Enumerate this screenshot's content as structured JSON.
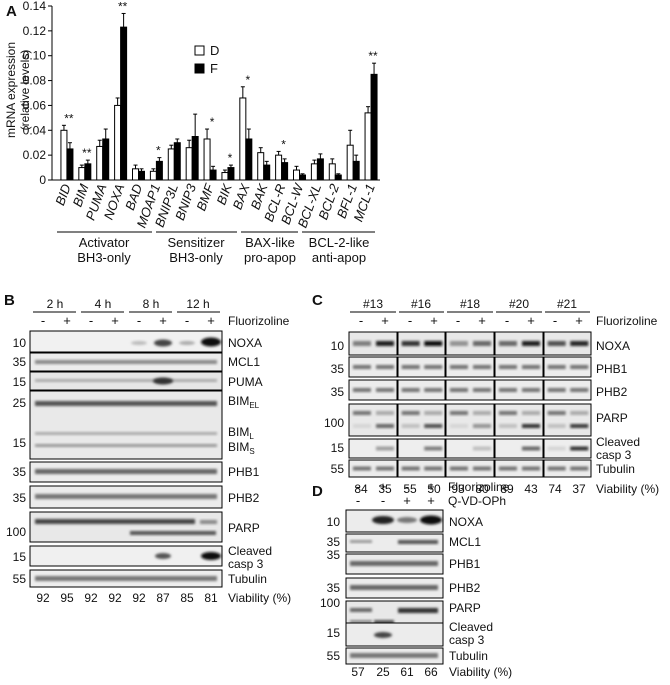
{
  "panel_a": {
    "label": "A",
    "y_title": [
      "mRNA expression",
      "(relative levels)"
    ],
    "legend": [
      "D",
      "F"
    ],
    "group_labels": [
      [
        "Activator",
        "BH3-only"
      ],
      [
        "Sensitizer",
        "BH3-only"
      ],
      [
        "BAX-like",
        "pro-apop"
      ],
      [
        "BCL-2-like",
        "anti-apop"
      ]
    ]
  },
  "chart_data": {
    "type": "bar",
    "ylabel": "mRNA expression (relative levels)",
    "ylim": [
      0,
      0.14
    ],
    "yticks": [
      "0",
      "0.02",
      "0.04",
      "0.06",
      "0.08",
      "0.10",
      "0.12",
      "0.14"
    ],
    "categories": [
      "BID",
      "BIM",
      "PUMA",
      "NOXA",
      "BAD",
      "MOAP1",
      "BNIP3L",
      "BNIP3",
      "BMF",
      "BIK",
      "BAX",
      "BAK",
      "BCL-R",
      "BCL-W",
      "BCL-XL",
      "BCL-2",
      "BFL-1",
      "MCL-1"
    ],
    "series": [
      {
        "name": "D",
        "color": "#ffffff",
        "values": [
          0.04,
          0.01,
          0.027,
          0.06,
          0.009,
          0.007,
          0.025,
          0.026,
          0.033,
          0.006,
          0.066,
          0.022,
          0.02,
          0.008,
          0.013,
          0.013,
          0.028,
          0.054
        ],
        "errors": [
          0.004,
          0.002,
          0.005,
          0.006,
          0.003,
          0.002,
          0.003,
          0.006,
          0.008,
          0.002,
          0.009,
          0.004,
          0.003,
          0.003,
          0.003,
          0.004,
          0.012,
          0.005
        ]
      },
      {
        "name": "F",
        "color": "#000000",
        "values": [
          0.025,
          0.013,
          0.033,
          0.123,
          0.007,
          0.015,
          0.03,
          0.035,
          0.008,
          0.01,
          0.033,
          0.012,
          0.014,
          0.004,
          0.017,
          0.004,
          0.015,
          0.085
        ],
        "errors": [
          0.005,
          0.003,
          0.008,
          0.011,
          0.002,
          0.003,
          0.003,
          0.018,
          0.003,
          0.002,
          0.008,
          0.003,
          0.003,
          0.001,
          0.004,
          0.001,
          0.005,
          0.009
        ]
      }
    ],
    "significance": [
      {
        "category": "BID",
        "mark": "**"
      },
      {
        "category": "BIM",
        "mark": "**"
      },
      {
        "category": "NOXA",
        "mark": "**"
      },
      {
        "category": "MOAP1",
        "mark": "*"
      },
      {
        "category": "BMF",
        "mark": "*"
      },
      {
        "category": "BIK",
        "mark": "*"
      },
      {
        "category": "BAX",
        "mark": "*"
      },
      {
        "category": "BCL-R",
        "mark": "*"
      },
      {
        "category": "MCL-1",
        "mark": "**"
      }
    ]
  },
  "panel_b": {
    "label": "B",
    "times": [
      "2 h",
      "4 h",
      "8 h",
      "12 h"
    ],
    "minus": "-",
    "plus": "+",
    "treatment": "Fluorizoline",
    "markers": [
      "10",
      "35",
      "15",
      "25",
      "15",
      "35",
      "35",
      "100",
      "15",
      "55"
    ],
    "proteins": [
      "NOXA",
      "MCL1",
      "PUMA",
      "PHB1",
      "PHB2",
      "PARP",
      "Tubulin"
    ],
    "bim": {
      "main": "BIM",
      "el": "EL",
      "l": "L",
      "s": "S"
    },
    "cleaved": [
      "Cleaved",
      "casp 3"
    ],
    "viability": [
      "92",
      "95",
      "92",
      "92",
      "92",
      "87",
      "85",
      "81"
    ],
    "viability_label": "Viability (%)"
  },
  "panel_c": {
    "label": "C",
    "patients": [
      "#13",
      "#16",
      "#18",
      "#20",
      "#21"
    ],
    "minus": "-",
    "plus": "+",
    "treatment": "Fluorizoline",
    "markers": [
      "10",
      "35",
      "35",
      "100",
      "15",
      "55"
    ],
    "proteins": [
      "NOXA",
      "PHB1",
      "PHB2",
      "PARP",
      "Tubulin"
    ],
    "cleaved": [
      "Cleaved",
      "casp 3"
    ],
    "viability": [
      "84",
      "35",
      "55",
      "50",
      "93",
      "80",
      "89",
      "43",
      "74",
      "37"
    ],
    "viability_label": "Viability (%)"
  },
  "panel_d": {
    "label": "D",
    "treatments": [
      "Fluorizoline",
      "Q-VD-OPh"
    ],
    "row1": [
      "-",
      "+",
      "-",
      "+"
    ],
    "row2": [
      "-",
      "-",
      "+",
      "+"
    ],
    "markers": [
      "10",
      "35",
      "35",
      "35",
      "100",
      "15",
      "55"
    ],
    "proteins": [
      "NOXA",
      "MCL1",
      "PHB1",
      "PHB2",
      "PARP",
      "Tubulin"
    ],
    "cleaved": [
      "Cleaved",
      "casp 3"
    ],
    "viability": [
      "57",
      "25",
      "61",
      "66"
    ],
    "viability_label": "Viability (%)"
  }
}
